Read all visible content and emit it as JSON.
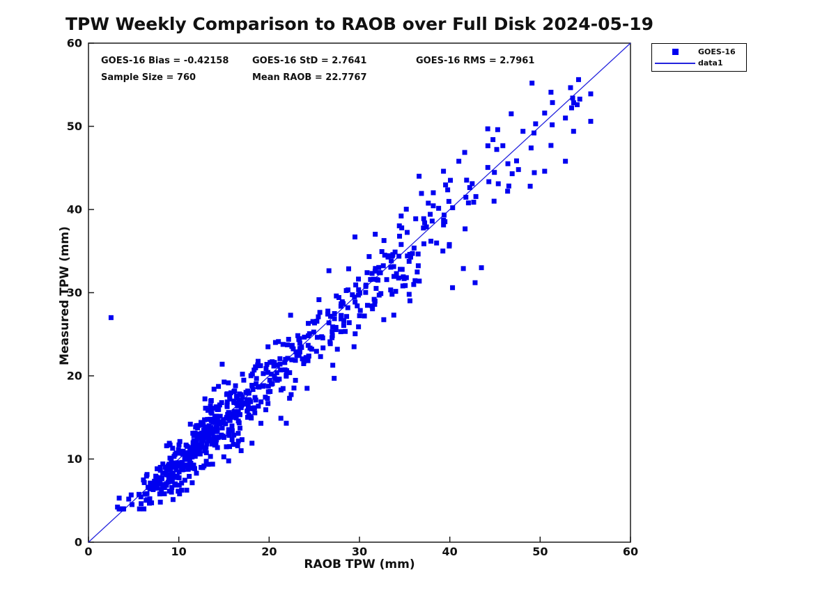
{
  "figure": {
    "title": "TPW Weekly Comparison to RAOB over Full Disk 2024-05-19"
  },
  "stats": {
    "bias": "GOES-16 Bias = -0.42158",
    "std": "GOES-16 StD = 2.7641",
    "rms": "GOES-16 RMS = 2.7961",
    "sample_size": "Sample Size = 760",
    "mean_raob": "Mean RAOB = 22.7767"
  },
  "legend": {
    "position": "top-right-outside",
    "entries": [
      {
        "label": "GOES-16",
        "icon": "filled-square-marker-icon",
        "color": "#0000f0"
      },
      {
        "label": "data1",
        "icon": "line-sample-icon",
        "color": "#2222dd"
      }
    ]
  },
  "colors": {
    "marker": "#0000f0",
    "line": "#2222dd",
    "axis": "#1a1a1a",
    "text": "#111111",
    "background": "#ffffff"
  },
  "chart_data": {
    "type": "scatter",
    "title": "TPW Weekly Comparison to RAOB over Full Disk 2024-05-19",
    "xlabel": "RAOB TPW (mm)",
    "ylabel": "Measured TPW (mm)",
    "xlim": [
      0,
      60
    ],
    "ylim": [
      0,
      60
    ],
    "xticks": [
      0,
      10,
      20,
      30,
      40,
      50,
      60
    ],
    "yticks": [
      0,
      10,
      20,
      30,
      40,
      50,
      60
    ],
    "grid": false,
    "box": true,
    "tick_direction": "in",
    "annotations": [
      "GOES-16 Bias = -0.42158",
      "GOES-16 StD = 2.7641",
      "GOES-16 RMS = 2.7961",
      "Sample Size = 760",
      "Mean RAOB = 22.7767"
    ],
    "series": [
      {
        "name": "GOES-16",
        "type": "scatter",
        "marker": "filled-square",
        "marker_size_px": 7,
        "color": "#0000f0",
        "n_points": 760,
        "stats": {
          "bias": -0.42158,
          "std": 2.7641,
          "rms": 2.7961,
          "sample_size": 760,
          "mean_raob": 22.7767
        },
        "notable_points": [
          [
            2.5,
            27.0
          ],
          [
            3.4,
            5.3
          ],
          [
            14.8,
            21.4
          ],
          [
            13.9,
            18.4
          ],
          [
            27.2,
            19.7
          ],
          [
            24.2,
            18.5
          ],
          [
            21.3,
            14.9
          ],
          [
            21.9,
            14.3
          ],
          [
            18.1,
            11.9
          ],
          [
            16.9,
            11.0
          ],
          [
            29.5,
            36.7
          ],
          [
            29.4,
            23.5
          ],
          [
            33.8,
            27.3
          ],
          [
            35.5,
            29.8
          ],
          [
            40.3,
            30.6
          ],
          [
            42.8,
            31.2
          ],
          [
            43.5,
            33.0
          ],
          [
            41.5,
            32.9
          ],
          [
            36.6,
            44.0
          ],
          [
            39.3,
            44.6
          ],
          [
            41.0,
            45.8
          ],
          [
            44.2,
            49.7
          ],
          [
            45.3,
            49.6
          ],
          [
            46.8,
            51.5
          ],
          [
            49.1,
            55.2
          ],
          [
            51.2,
            54.1
          ],
          [
            53.6,
            53.4
          ],
          [
            55.6,
            53.9
          ],
          [
            54.1,
            52.6
          ],
          [
            50.5,
            51.6
          ],
          [
            52.8,
            51.0
          ],
          [
            55.6,
            50.6
          ],
          [
            49.5,
            50.3
          ],
          [
            48.1,
            49.4
          ],
          [
            53.7,
            49.4
          ],
          [
            51.2,
            47.7
          ],
          [
            49.0,
            47.4
          ],
          [
            47.6,
            44.8
          ],
          [
            50.5,
            44.6
          ],
          [
            52.8,
            45.8
          ],
          [
            44.9,
            41.0
          ],
          [
            46.4,
            42.2
          ],
          [
            48.9,
            42.8
          ]
        ],
        "point_cloud_model": {
          "comment": "760 total points scattered about y=x; dense 6-18mm and 20-35mm, sparse tail to 56mm",
          "seed": 11,
          "n": 717,
          "bias": -0.42158,
          "max_abs_deviation": 8.5,
          "y_clamp": [
            4.0,
            59.0
          ],
          "segments": [
            {
              "weight": 0.02,
              "x_range": [
                3,
                6
              ],
              "sigma": 0.8
            },
            {
              "weight": 0.105,
              "x_range": [
                6,
                9
              ],
              "sigma": 1.2
            },
            {
              "weight": 0.16,
              "x_range": [
                9,
                12
              ],
              "sigma": 1.5
            },
            {
              "weight": 0.15,
              "x_range": [
                12,
                15
              ],
              "sigma": 1.7
            },
            {
              "weight": 0.115,
              "x_range": [
                15,
                18
              ],
              "sigma": 1.9
            },
            {
              "weight": 0.09,
              "x_range": [
                18,
                21
              ],
              "sigma": 2.0
            },
            {
              "weight": 0.085,
              "x_range": [
                21,
                25
              ],
              "sigma": 2.2
            },
            {
              "weight": 0.095,
              "x_range": [
                25,
                30
              ],
              "sigma": 2.3
            },
            {
              "weight": 0.08,
              "x_range": [
                30,
                35
              ],
              "sigma": 2.5
            },
            {
              "weight": 0.05,
              "x_range": [
                35,
                40
              ],
              "sigma": 2.8
            },
            {
              "weight": 0.03,
              "x_range": [
                40,
                46
              ],
              "sigma": 3.0
            },
            {
              "weight": 0.02,
              "x_range": [
                46,
                56
              ],
              "sigma": 2.2
            }
          ]
        }
      },
      {
        "name": "data1",
        "type": "line",
        "color": "#2222dd",
        "points": [
          [
            0,
            0
          ],
          [
            60,
            60
          ]
        ]
      }
    ]
  }
}
